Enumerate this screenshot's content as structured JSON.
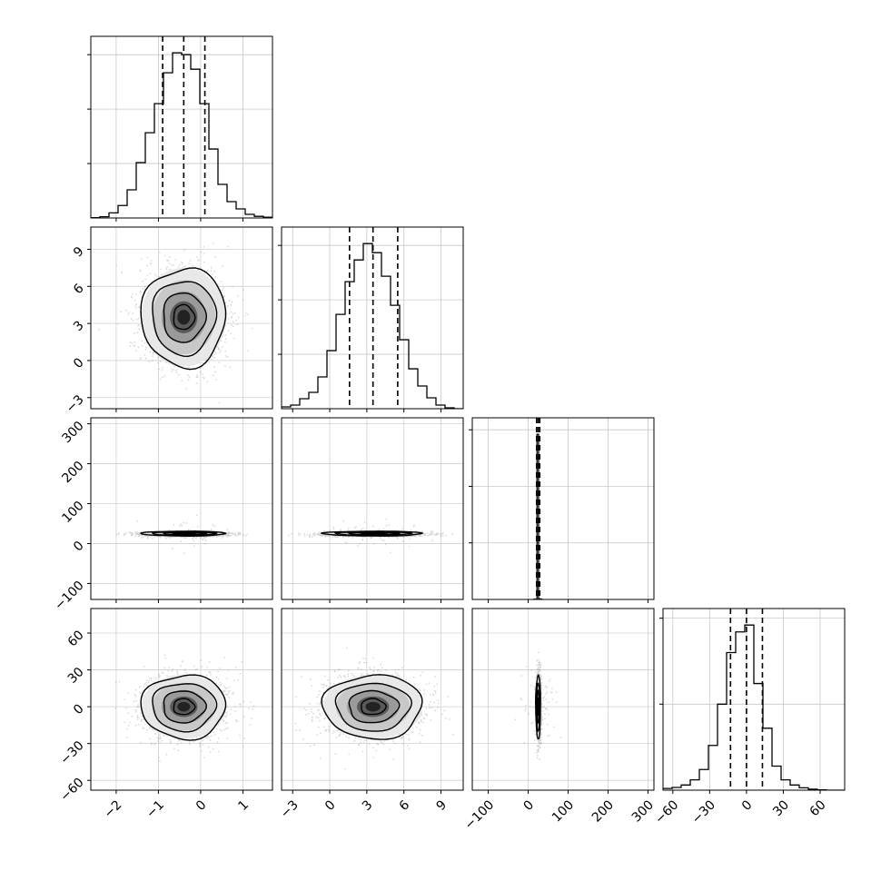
{
  "chart_data": {
    "type": "corner",
    "title": "",
    "parameters": [
      {
        "label": "",
        "range": [
          -2.6,
          1.7
        ],
        "ticks": [
          -2,
          -1,
          0,
          1
        ],
        "tick_labels": [
          "−2",
          "−1",
          "0",
          "1"
        ],
        "quantiles": [
          -0.9,
          -0.4,
          0.1
        ],
        "hist": [
          0.2,
          0.7,
          2.8,
          6.9,
          15.5,
          30.5,
          47.0,
          63.0,
          80.0,
          91.0,
          90.0,
          82.0,
          63.0,
          38.0,
          18.5,
          9.0,
          5.0,
          2.0,
          0.9,
          0.4
        ]
      },
      {
        "label": "",
        "range": [
          -3.9,
          10.8
        ],
        "ticks": [
          -3,
          0,
          3,
          6,
          9
        ],
        "tick_labels": [
          "−3",
          "0",
          "3",
          "6",
          "9"
        ],
        "quantiles": [
          1.6,
          3.5,
          5.5
        ],
        "hist": [
          1.0,
          2.0,
          5.5,
          9.0,
          17.5,
          32.0,
          52.0,
          70.0,
          82.0,
          91.0,
          86.0,
          73.0,
          57.0,
          38.0,
          22.0,
          12.5,
          6.0,
          2.0,
          0.5,
          0.0
        ]
      },
      {
        "label": "",
        "range": [
          -140,
          315
        ],
        "ticks": [
          -100,
          0,
          100,
          200,
          300
        ],
        "tick_labels": [
          "−100",
          "0",
          "100",
          "200",
          "300"
        ],
        "quantiles": [
          21,
          25,
          29
        ],
        "hist_bins": {
          "start": 14,
          "width": 4,
          "values": [
            0.3,
            0.6,
            292.0,
            1.2,
            0.5
          ]
        }
      },
      {
        "label": "",
        "range": [
          -68,
          80
        ],
        "ticks": [
          -60,
          -30,
          0,
          30,
          60
        ],
        "tick_labels": [
          "−60",
          "−30",
          "0",
          "30",
          "60"
        ],
        "quantiles": [
          -13,
          0,
          13
        ],
        "hist": [
          0.5,
          0.8,
          1.5,
          3.0,
          6.0,
          13.0,
          25.0,
          40.0,
          46.0,
          48.0,
          31.0,
          18.0,
          7.0,
          3.0,
          1.5,
          0.7,
          0.3,
          0.1,
          0.0,
          0.0
        ]
      }
    ],
    "diagonal_y_ticks": [
      [
        30,
        60,
        90
      ],
      [
        30,
        60,
        90
      ],
      [
        100,
        200,
        300
      ],
      [
        25,
        50
      ]
    ],
    "pairs": [
      {
        "row": 1,
        "col": 0,
        "means": [
          -0.4,
          3.5
        ],
        "sd": [
          0.5,
          2.0
        ]
      },
      {
        "row": 2,
        "col": 0,
        "means": [
          -0.4,
          25
        ],
        "sd": [
          0.5,
          3.0
        ]
      },
      {
        "row": 2,
        "col": 1,
        "means": [
          3.5,
          25
        ],
        "sd": [
          2.0,
          3.0
        ]
      },
      {
        "row": 3,
        "col": 0,
        "means": [
          -0.4,
          0
        ],
        "sd": [
          0.5,
          13
        ]
      },
      {
        "row": 3,
        "col": 1,
        "means": [
          3.5,
          0
        ],
        "sd": [
          2.0,
          13
        ]
      },
      {
        "row": 3,
        "col": 2,
        "means": [
          25,
          0
        ],
        "sd": [
          3.0,
          13
        ]
      }
    ],
    "grid": true
  }
}
